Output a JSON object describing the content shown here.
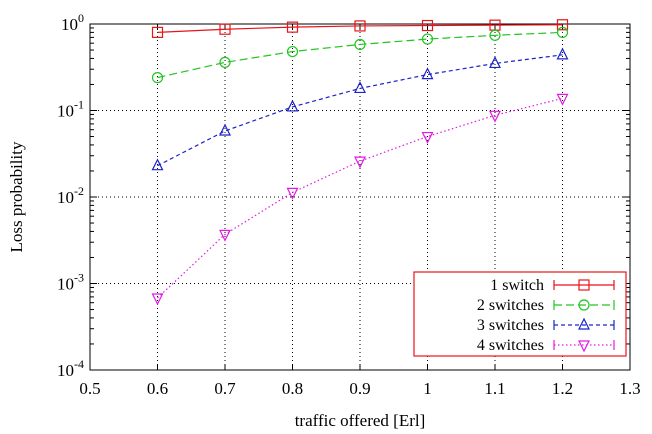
{
  "chart_data": {
    "type": "line",
    "xlabel": "traffic offered [Erl]",
    "ylabel": "Loss probability",
    "xlim": [
      0.5,
      1.3
    ],
    "ylim": [
      0.0001,
      1
    ],
    "yscale": "log",
    "grid": true,
    "legend_position": "bottom-right",
    "x_ticks": [
      "0.5",
      "0.6",
      "0.7",
      "0.8",
      "0.9",
      "1",
      "1.1",
      "1.2",
      "1.3"
    ],
    "y_ticks": [
      {
        "base": "10",
        "exp": "-4"
      },
      {
        "base": "10",
        "exp": "-3"
      },
      {
        "base": "10",
        "exp": "-2"
      },
      {
        "base": "10",
        "exp": "-1"
      },
      {
        "base": "10",
        "exp": "0"
      }
    ],
    "x": [
      0.6,
      0.7,
      0.8,
      0.9,
      1.0,
      1.1,
      1.2
    ],
    "series": [
      {
        "name": "1 switch",
        "color": "#e8141b",
        "marker": "square",
        "dash": "solid",
        "values": [
          0.8,
          0.87,
          0.92,
          0.95,
          0.96,
          0.97,
          0.98
        ]
      },
      {
        "name": "2 switches",
        "color": "#22c422",
        "marker": "circle",
        "dash": "dashed",
        "values": [
          0.24,
          0.36,
          0.48,
          0.58,
          0.67,
          0.74,
          0.8
        ]
      },
      {
        "name": "3 switches",
        "color": "#1b24c8",
        "marker": "triangle-up",
        "dash": "short-dashed",
        "values": [
          0.023,
          0.058,
          0.11,
          0.18,
          0.26,
          0.35,
          0.44
        ]
      },
      {
        "name": "4 switches",
        "color": "#e21ae2",
        "marker": "triangle-down",
        "dash": "dotted",
        "values": [
          0.00068,
          0.0037,
          0.0113,
          0.026,
          0.05,
          0.088,
          0.138
        ]
      }
    ]
  }
}
